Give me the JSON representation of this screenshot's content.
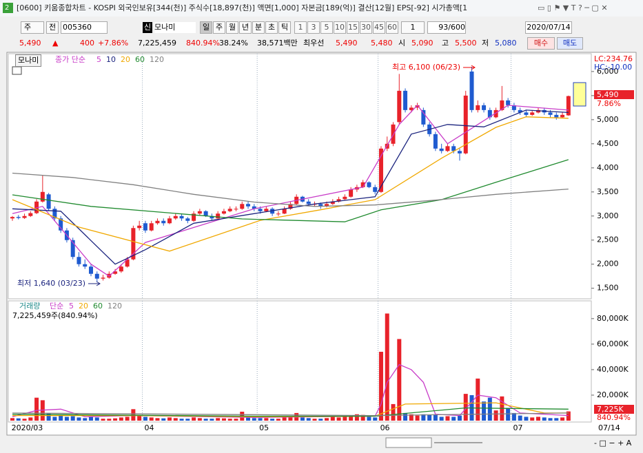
{
  "window": {
    "number": "2",
    "title": "[0600] 키움종합차트 - KOSPI 외국인보유[344(천)] 주식수[18,897(천)] 액면[1,000] 자본금[189(억)] 결산[12월] EPS[-92] 시가총액[1"
  },
  "toolbar": {
    "period_type": "주",
    "mode": "전",
    "code": "005360",
    "badge": "신",
    "name": "모나미",
    "periods": [
      "일",
      "주",
      "월",
      "년",
      "분",
      "초",
      "틱"
    ],
    "intervals": [
      "1",
      "3",
      "5",
      "10",
      "15",
      "30",
      "45",
      "60"
    ],
    "unit": "1",
    "count": "93/600",
    "date": "2020/07/14"
  },
  "quote": {
    "price": "5,490",
    "arrow": "▲",
    "change": "400",
    "change_rate": "+7.86%",
    "volume": "7,225,459",
    "volume_rate": "840.94%",
    "turnover": "38.24%",
    "amount": "38,571백만",
    "best_label": "최우선",
    "ask": "5,490",
    "bid": "5,480",
    "open_label": "시",
    "open": "5,090",
    "high_label": "고",
    "high": "5,500",
    "low_label": "저",
    "low": "5,080",
    "buy": "매수",
    "sell": "매도"
  },
  "chart_data": [
    {
      "type": "candlestick",
      "title": "모나미",
      "legend_prefix": "종가 단순",
      "lc": "LC:234.76",
      "hc": "HC:-10.00",
      "up_color": "#e8222a",
      "down_color": "#1f5bd0",
      "open": [
        2950,
        2980,
        2960,
        3000,
        3060,
        3300,
        3450,
        3150,
        2950,
        2700,
        2500,
        2150,
        2000,
        1950,
        1800,
        1700,
        1720,
        1800,
        1850,
        1950,
        2100,
        2750,
        2850,
        2700,
        2850,
        2900,
        2850,
        2950,
        3000,
        2950,
        2900,
        3050,
        3100,
        3000,
        2950,
        3050,
        3100,
        3150,
        3150,
        3250,
        3200,
        3150,
        3100,
        3150,
        3050,
        3050,
        3150,
        3250,
        3400,
        3300,
        3250,
        3250,
        3200,
        3250,
        3300,
        3350,
        3400,
        3550,
        3600,
        3700,
        3600,
        3500,
        4400,
        4500,
        4950,
        5600,
        5200,
        5250,
        5200,
        4900,
        4700,
        4400,
        4350,
        4450,
        4350,
        4300,
        6000,
        5200,
        5300,
        5200,
        5050,
        5200,
        5400,
        5300,
        5200,
        5150,
        5100,
        5150,
        5200,
        5150,
        5100,
        5050,
        5090
      ],
      "high": [
        3000,
        3020,
        3050,
        3100,
        3350,
        3850,
        3480,
        3200,
        3000,
        2750,
        2550,
        2250,
        2100,
        2000,
        1850,
        1780,
        1850,
        1900,
        2000,
        2150,
        2800,
        2900,
        2900,
        2900,
        2950,
        2950,
        3000,
        3050,
        3050,
        2980,
        3100,
        3150,
        3120,
        3050,
        3100,
        3150,
        3200,
        3200,
        3300,
        3300,
        3250,
        3200,
        3200,
        3180,
        3100,
        3200,
        3300,
        3450,
        3420,
        3350,
        3300,
        3280,
        3300,
        3350,
        3400,
        3450,
        3600,
        3650,
        3750,
        3720,
        3650,
        4450,
        4650,
        4950,
        5950,
        5650,
        5300,
        5350,
        5250,
        4950,
        4750,
        4500,
        4500,
        4500,
        4400,
        5600,
        6100,
        5400,
        5350,
        5250,
        5250,
        5700,
        5450,
        5350,
        5250,
        5200,
        5200,
        5250,
        5250,
        5200,
        5150,
        5150,
        5500
      ],
      "low": [
        2900,
        2930,
        2940,
        2980,
        3040,
        3280,
        3100,
        2900,
        2650,
        2450,
        2100,
        1950,
        1900,
        1750,
        1640,
        1660,
        1700,
        1780,
        1820,
        1930,
        2080,
        2700,
        2650,
        2680,
        2820,
        2800,
        2830,
        2920,
        2900,
        2850,
        2880,
        3020,
        2980,
        2900,
        2940,
        3030,
        3080,
        3100,
        3130,
        3150,
        3100,
        3050,
        3080,
        3000,
        3000,
        3040,
        3130,
        3230,
        3280,
        3230,
        3200,
        3150,
        3180,
        3230,
        3280,
        3330,
        3380,
        3500,
        3580,
        3580,
        3450,
        3480,
        4350,
        4450,
        4900,
        5150,
        5150,
        5200,
        4850,
        4650,
        4350,
        4300,
        4330,
        4300,
        4150,
        4280,
        5150,
        5150,
        5150,
        5000,
        5030,
        5180,
        5250,
        5150,
        5100,
        5050,
        5080,
        5130,
        5100,
        5050,
        5000,
        5030,
        5080
      ],
      "close": [
        2980,
        2960,
        3000,
        3060,
        3300,
        3500,
        3150,
        2950,
        2700,
        2500,
        2150,
        2000,
        1950,
        1800,
        1700,
        1720,
        1800,
        1850,
        1950,
        2100,
        2750,
        2800,
        2700,
        2850,
        2900,
        2850,
        2950,
        3000,
        2950,
        2900,
        3050,
        3100,
        3000,
        2950,
        3050,
        3100,
        3150,
        3150,
        3250,
        3200,
        3150,
        3100,
        3150,
        3050,
        3050,
        3150,
        3250,
        3400,
        3300,
        3250,
        3250,
        3200,
        3250,
        3300,
        3350,
        3400,
        3550,
        3600,
        3700,
        3600,
        3500,
        4400,
        4500,
        4900,
        5600,
        5200,
        5250,
        5300,
        4900,
        4700,
        4400,
        4350,
        4450,
        4350,
        4300,
        5500,
        5200,
        5300,
        5200,
        5050,
        5200,
        5400,
        5300,
        5200,
        5150,
        5100,
        5150,
        5200,
        5150,
        5100,
        5050,
        5100,
        5490
      ],
      "series": [
        {
          "name": "5",
          "color": "#c83cc8",
          "x": [
            0,
            5,
            13,
            16,
            22,
            40,
            58,
            64,
            67,
            72,
            77,
            82,
            92
          ],
          "values": [
            3050,
            3200,
            2000,
            1750,
            2450,
            3150,
            3600,
            4900,
            5300,
            4500,
            4900,
            5300,
            5200
          ]
        },
        {
          "name": "10",
          "color": "#1a237e",
          "x": [
            0,
            8,
            17,
            22,
            30,
            50,
            60,
            66,
            72,
            78,
            85,
            92
          ],
          "values": [
            3150,
            3100,
            2000,
            2300,
            2850,
            3250,
            3400,
            4700,
            4900,
            4850,
            5200,
            5150
          ]
        },
        {
          "name": "20",
          "color": "#f0a800",
          "x": [
            0,
            11,
            26,
            41,
            51,
            60,
            71,
            80,
            85,
            92
          ],
          "values": [
            3340,
            2770,
            2270,
            2910,
            3130,
            3340,
            4200,
            4840,
            5060,
            5030
          ]
        },
        {
          "name": "60",
          "color": "#1f8a2e",
          "x": [
            0,
            13,
            38,
            55,
            61,
            71,
            80,
            92
          ],
          "values": [
            3440,
            3200,
            2940,
            2880,
            3130,
            3340,
            3700,
            4170
          ]
        },
        {
          "name": "120",
          "color": "#808080",
          "x": [
            0,
            10,
            20,
            30,
            40,
            50,
            60,
            70,
            80,
            92
          ],
          "values": [
            3890,
            3800,
            3650,
            3450,
            3290,
            3200,
            3230,
            3330,
            3450,
            3560
          ]
        }
      ],
      "ylim": [
        1310,
        6170
      ],
      "yticks": [
        {
          "value": 1500,
          "label": "1,500"
        },
        {
          "value": 2000,
          "label": "2,000"
        },
        {
          "value": 2500,
          "label": "2,500"
        },
        {
          "value": 3000,
          "label": "3,000"
        },
        {
          "value": 3500,
          "label": "3,500"
        },
        {
          "value": 4000,
          "label": "4,000"
        },
        {
          "value": 4500,
          "label": "4,500"
        },
        {
          "value": 5000,
          "label": "5,000"
        },
        {
          "value": 5500,
          "label": "5,500"
        },
        {
          "value": 6000,
          "label": "6,000"
        }
      ],
      "annotations": {
        "high": "최고 6,100 (06/23)",
        "low": "최저 1,640 (03/23)"
      },
      "last_label": {
        "value": "5,490",
        "rate": "7.86%"
      }
    },
    {
      "type": "bar",
      "legend_title": "거래량",
      "legend_prefix": "단순",
      "info": "7,225,459주(840.94%)",
      "categories": [
        "2020/03",
        null,
        null,
        null,
        null,
        null,
        null,
        null,
        null,
        null,
        null,
        null,
        null,
        null,
        null,
        null,
        null,
        null,
        null,
        null,
        null,
        null,
        "04",
        null,
        null,
        null,
        null,
        null,
        null,
        null,
        null,
        null,
        null,
        null,
        null,
        null,
        null,
        null,
        null,
        null,
        null,
        "05",
        null,
        null,
        null,
        null,
        null,
        null,
        null,
        null,
        null,
        null,
        null,
        null,
        null,
        null,
        null,
        null,
        null,
        null,
        null,
        "06",
        null,
        null,
        null,
        null,
        null,
        null,
        null,
        null,
        null,
        null,
        null,
        null,
        null,
        null,
        null,
        null,
        null,
        null,
        null,
        null,
        null,
        "07",
        null,
        null,
        null,
        null,
        null,
        null,
        null,
        null,
        null
      ],
      "last_date": "07/14",
      "values": [
        2000,
        1800,
        1500,
        2500,
        18000,
        16000,
        6000,
        3000,
        4000,
        3000,
        3500,
        2500,
        2000,
        3000,
        2500,
        1500,
        1500,
        1800,
        2500,
        3000,
        9000,
        4000,
        3000,
        2500,
        2000,
        1800,
        2500,
        2000,
        1500,
        1500,
        2500,
        2000,
        1500,
        1500,
        2000,
        1800,
        1500,
        1500,
        7000,
        2500,
        2000,
        2000,
        2000,
        1500,
        1500,
        2500,
        3000,
        6000,
        2500,
        2000,
        1500,
        1500,
        2000,
        3000,
        2500,
        3000,
        4000,
        5000,
        4500,
        3000,
        2500,
        54000,
        84000,
        13000,
        64000,
        6000,
        5000,
        4000,
        5000,
        4500,
        5000,
        3000,
        3500,
        3000,
        4000,
        21000,
        20000,
        33000,
        15000,
        18000,
        8000,
        19000,
        10000,
        6000,
        4000,
        3000,
        2500,
        3000,
        2500,
        2000,
        2000,
        2500,
        7225
      ],
      "series": [
        {
          "name": "5",
          "color": "#c83cc8",
          "x": [
            0,
            4,
            8,
            12,
            20,
            40,
            60,
            61,
            62,
            64,
            66,
            68,
            70,
            74,
            77,
            80,
            84,
            92
          ],
          "values": [
            3000,
            8000,
            9000,
            3000,
            4000,
            2500,
            3500,
            13000,
            30000,
            44000,
            40000,
            30000,
            5000,
            4000,
            20000,
            18000,
            6000,
            4000
          ]
        },
        {
          "name": "20",
          "color": "#f0a800",
          "x": [
            0,
            20,
            40,
            60,
            65,
            80,
            88,
            92
          ],
          "values": [
            4000,
            4000,
            3000,
            3500,
            13000,
            14000,
            6000,
            6000
          ]
        },
        {
          "name": "60",
          "color": "#1f8a2e",
          "x": [
            0,
            40,
            60,
            75,
            92
          ],
          "values": [
            5000,
            3500,
            3500,
            10000,
            9000
          ]
        },
        {
          "name": "120",
          "color": "#808080",
          "x": [
            0,
            60,
            92
          ],
          "values": [
            6000,
            4000,
            6000
          ]
        }
      ],
      "ylim": [
        0,
        88000
      ],
      "yticks": [
        {
          "value": 20000,
          "label": "20,000K"
        },
        {
          "value": 40000,
          "label": "40,000K"
        },
        {
          "value": 60000,
          "label": "60,000K"
        },
        {
          "value": 80000,
          "label": "80,000K"
        }
      ],
      "last_label": {
        "value": "7,225K",
        "rate": "840.94%"
      }
    }
  ]
}
